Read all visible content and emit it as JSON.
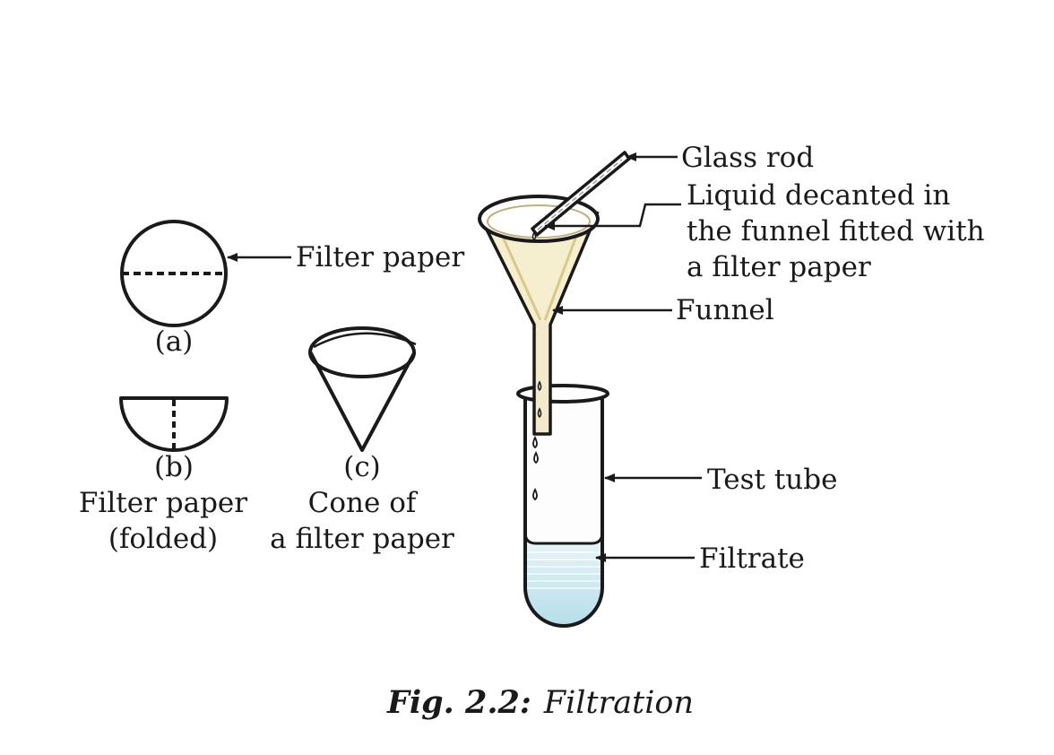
{
  "figure": {
    "labels": {
      "filter_paper": "Filter paper",
      "a": "(a)",
      "b": "(b)",
      "b_caption_line1": "Filter paper",
      "b_caption_line2": "(folded)",
      "c": "(c)",
      "c_caption_line1": "Cone of",
      "c_caption_line2": "a filter paper",
      "glass_rod": "Glass rod",
      "liquid_line1": "Liquid decanted in",
      "liquid_line2": "the funnel fitted with",
      "liquid_line3": "a filter paper",
      "funnel": "Funnel",
      "test_tube": "Test tube",
      "filtrate": "Filtrate"
    },
    "caption": {
      "number": "Fig. 2.2:",
      "title": "Filtration"
    },
    "colors": {
      "funnel": "#f6efcf",
      "funnel_glass": "#e9dcaa",
      "filtrate": "#bfe3ee",
      "ink": "#1a1a1a"
    }
  }
}
